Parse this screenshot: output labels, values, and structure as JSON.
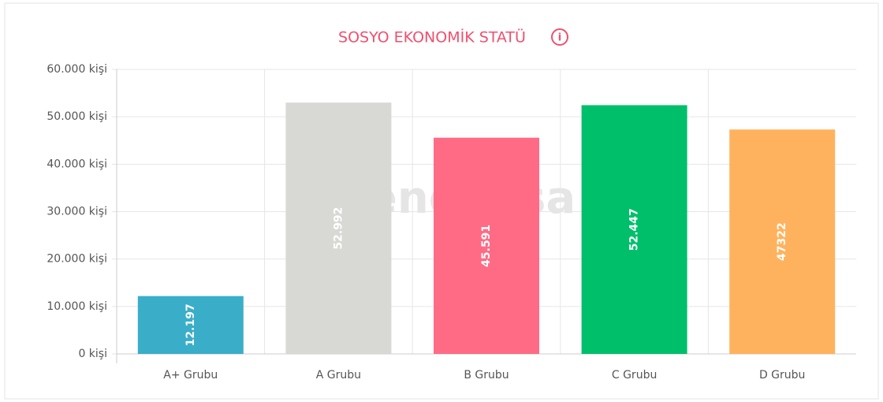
{
  "chart_data": {
    "type": "bar",
    "title": "SOSYO EKONOMİK STATÜ",
    "watermark": "endeksa",
    "categories": [
      "A+ Grubu",
      "A Grubu",
      "B Grubu",
      "C Grubu",
      "D Grubu"
    ],
    "values": [
      12197,
      52992,
      45591,
      52447,
      47322
    ],
    "value_labels": [
      "12.197",
      "52.992",
      "45.591",
      "52.447",
      "47322"
    ],
    "colors": [
      "#3aaec9",
      "#d8d9d5",
      "#ff6b85",
      "#00bf6b",
      "#ffb25e"
    ],
    "ylim": [
      0,
      60000
    ],
    "yticks": [
      {
        "value": 0,
        "label": "0 kişi"
      },
      {
        "value": 10000,
        "label": "10.000 kişi"
      },
      {
        "value": 20000,
        "label": "20.000 kişi"
      },
      {
        "value": 30000,
        "label": "30.000 kişi"
      },
      {
        "value": 40000,
        "label": "40.000 kişi"
      },
      {
        "value": 50000,
        "label": "50.000 kişi"
      },
      {
        "value": 60000,
        "label": "60.000 kişi"
      }
    ],
    "grid": true
  }
}
